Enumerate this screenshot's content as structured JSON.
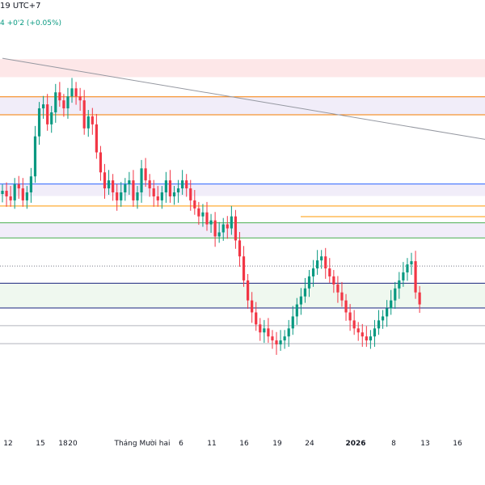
{
  "header": {
    "time_label": "19 UTC+7",
    "change_label": "4  +0'2 (+0.05%)"
  },
  "colors": {
    "up": "#089981",
    "down": "#f23645",
    "background": "#ffffff",
    "axis_text": "#131722"
  },
  "chart_data": {
    "type": "candlestick",
    "title": "",
    "xlabel": "",
    "ylabel": "",
    "ylim": [
      0,
      100
    ],
    "grid": false,
    "x_ticks": [
      "12",
      "15",
      "18",
      "20",
      "Tháng Mười hai",
      "6",
      "11",
      "16",
      "19",
      "24",
      "2026",
      "8",
      "13",
      "16"
    ],
    "bold_ticks": [
      "2026"
    ],
    "close_series": [
      60.4,
      59,
      58,
      62,
      61,
      58,
      60,
      64,
      74,
      81,
      82,
      77,
      80,
      85,
      83,
      81,
      84,
      86,
      84,
      83,
      76,
      79,
      77,
      70,
      65,
      61,
      63,
      60,
      58,
      60,
      62,
      63,
      58,
      60,
      66,
      63,
      61,
      59,
      58,
      60,
      63,
      59,
      60,
      61,
      63,
      61,
      58,
      56,
      54,
      55,
      52,
      53,
      49,
      50,
      52,
      51,
      54,
      48,
      44,
      38,
      33,
      30,
      27,
      25,
      26,
      24,
      23,
      22,
      23,
      24,
      26,
      29,
      32,
      34,
      36,
      39,
      41,
      43,
      44,
      41,
      39,
      37,
      35,
      33,
      30,
      28,
      26,
      25,
      24,
      23,
      24,
      26,
      28,
      29,
      31,
      33,
      36,
      38,
      40,
      42,
      42.8,
      35,
      32
    ],
    "reference_lines": [
      {
        "kind": "zone",
        "color": "#f23645",
        "value_top": 93.3,
        "value_bottom": 88.8
      },
      {
        "kind": "line",
        "color": "#f57c00",
        "value": 83.9
      },
      {
        "kind": "zone",
        "color": "#673ab7",
        "value_top": 83.9,
        "value_bottom": 79.4
      },
      {
        "kind": "line",
        "color": "#f57c00",
        "value": 79.4
      },
      {
        "kind": "line",
        "color": "#2962ff",
        "value": 62.1
      },
      {
        "kind": "zone",
        "color": "#673ab7",
        "value_top": 62.1,
        "value_bottom": 59.1
      },
      {
        "kind": "line",
        "color": "#ff9800",
        "value": 56.6
      },
      {
        "kind": "line",
        "color": "#4caf50",
        "value": 52.4
      },
      {
        "kind": "zone",
        "color": "#673ab7",
        "value_top": 52.4,
        "value_bottom": 48.6
      },
      {
        "kind": "line",
        "color": "#4caf50",
        "value": 48.6
      },
      {
        "kind": "line",
        "color": "#787b86",
        "value": 41.6,
        "dashed": true
      },
      {
        "kind": "line",
        "color": "#1a237e",
        "value": 37.3
      },
      {
        "kind": "zone",
        "color": "#4caf50",
        "value_top": 37.3,
        "value_bottom": 31.1
      },
      {
        "kind": "line",
        "color": "#1a237e",
        "value": 31.1
      },
      {
        "kind": "line",
        "color": "#b2b5be",
        "value": 26.7
      },
      {
        "kind": "line",
        "color": "#b2b5be",
        "value": 22.2
      }
    ],
    "trendline": {
      "color": "#9598a1",
      "from": [
        0,
        93.5
      ],
      "to": [
        102,
        76
      ]
    }
  }
}
